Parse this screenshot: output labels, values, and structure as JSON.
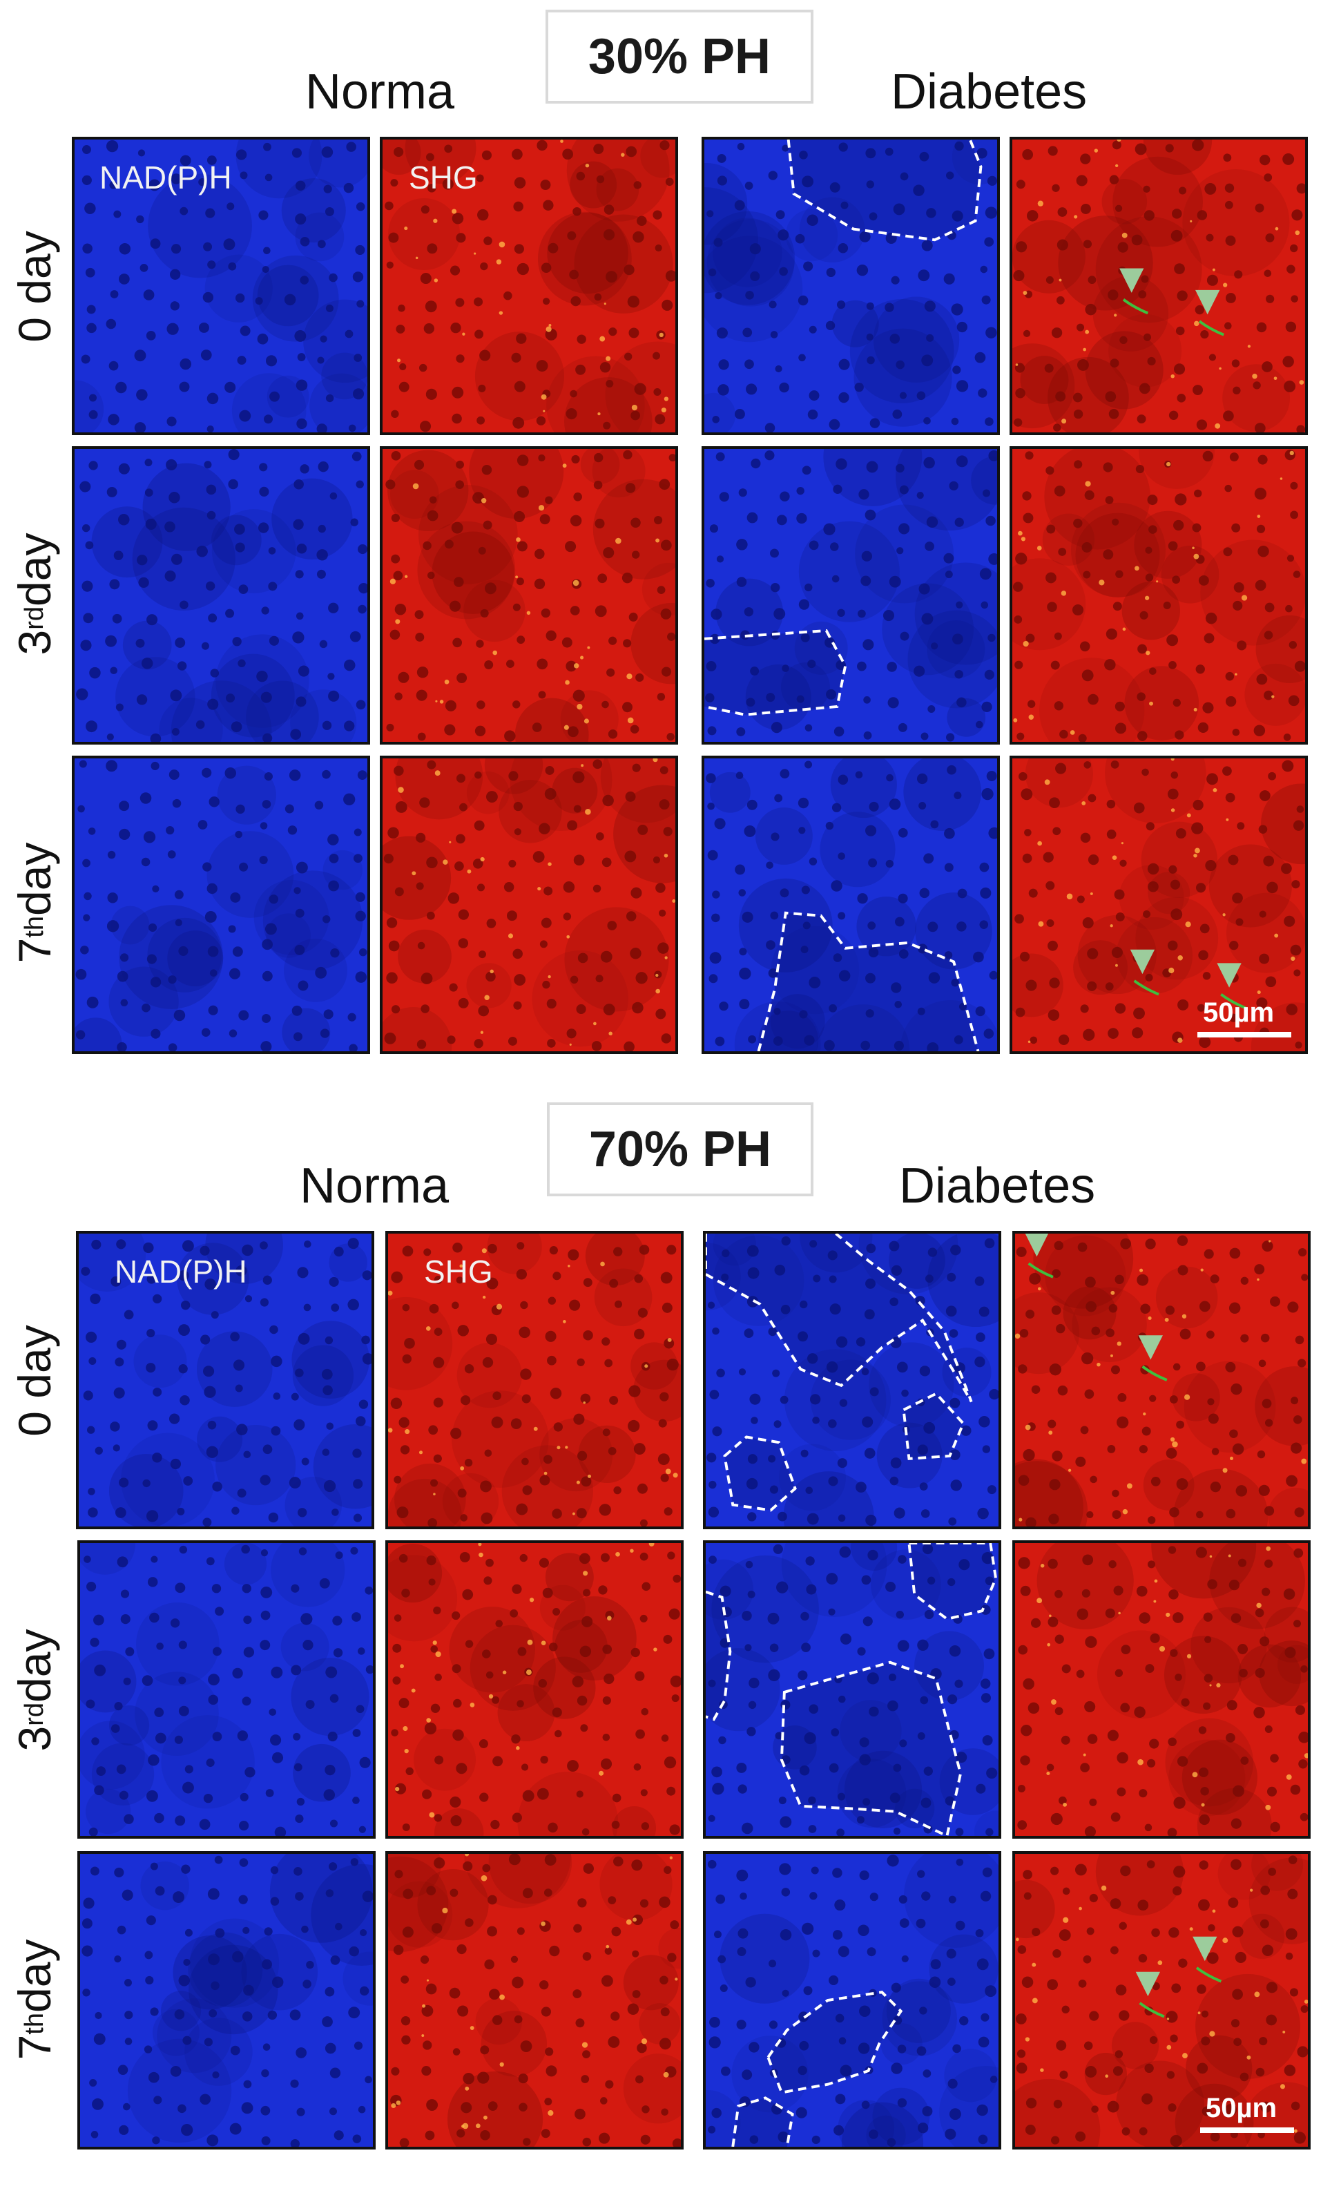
{
  "blocks": [
    {
      "title": "30% PH",
      "group_norma": "Norma",
      "group_diabetes": "Diabetes",
      "panel_label_nadph": "NAD(P)H",
      "panel_label_shg": "SHG",
      "rows": [
        {
          "base": "0 day",
          "sup": ""
        },
        {
          "base": "3",
          "sup": "rd",
          "tail": " day"
        },
        {
          "base": "7",
          "sup": "th",
          "tail": " day"
        }
      ],
      "scale_label": "50µm"
    },
    {
      "title": "70% PH",
      "group_norma": "Norma",
      "group_diabetes": "Diabetes",
      "panel_label_nadph": "NAD(P)H",
      "panel_label_shg": "SHG",
      "rows": [
        {
          "base": "0 day",
          "sup": ""
        },
        {
          "base": "3",
          "sup": "rd",
          "tail": " day"
        },
        {
          "base": "7",
          "sup": "th",
          "tail": " day"
        }
      ],
      "scale_label": "50µm"
    }
  ],
  "colors": {
    "nadph_bg": "#1a2fd6",
    "nadph_dark": "#0a1480",
    "shg_bg": "#d41a10",
    "shg_dark": "#7a0a05",
    "collagen_green": "#3fbf3f",
    "arrow_green": "#9ccc9c",
    "outline": "#ffffff"
  }
}
